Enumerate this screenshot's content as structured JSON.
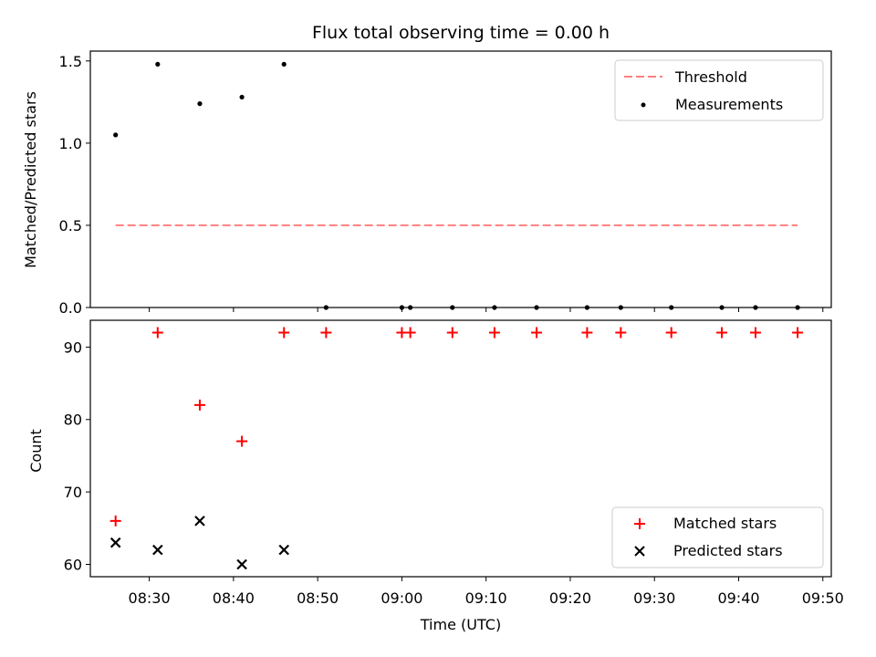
{
  "chart_data": [
    {
      "type": "scatter",
      "title": "Flux total observing time = 0.00 h",
      "xlabel": "",
      "ylabel": "Matched/Predicted stars",
      "ylim": [
        0,
        1.56
      ],
      "yticks": [
        0.0,
        0.5,
        1.0,
        1.5
      ],
      "ytick_labels": [
        "0.0",
        "0.5",
        "1.0",
        "1.5"
      ],
      "threshold": {
        "name": "Threshold",
        "y": 0.5,
        "x": [
          "08:26",
          "09:47"
        ],
        "color": "#ff7f7f"
      },
      "series": [
        {
          "name": "Measurements",
          "color": "#000000",
          "marker": "dot",
          "x": [
            "08:26",
            "08:31",
            "08:36",
            "08:41",
            "08:46",
            "08:51",
            "09:00",
            "09:01",
            "09:06",
            "09:11",
            "09:16",
            "09:22",
            "09:26",
            "09:32",
            "09:38",
            "09:42",
            "09:47"
          ],
          "y": [
            1.05,
            1.48,
            1.24,
            1.28,
            1.48,
            0,
            0,
            0,
            0,
            0,
            0,
            0,
            0,
            0,
            0,
            0,
            0
          ]
        }
      ],
      "legend": {
        "location": "top-right",
        "entries": [
          "Threshold",
          "Measurements"
        ]
      },
      "grid": false
    },
    {
      "type": "scatter",
      "title": "",
      "xlabel": "Time (UTC)",
      "ylabel": "Count",
      "xlim": [
        "08:23",
        "09:51"
      ],
      "xticks": [
        "08:30",
        "08:40",
        "08:50",
        "09:00",
        "09:10",
        "09:20",
        "09:30",
        "09:40",
        "09:50"
      ],
      "ylim": [
        58.3,
        93.7
      ],
      "yticks": [
        60,
        70,
        80,
        90
      ],
      "ytick_labels": [
        "60",
        "70",
        "80",
        "90"
      ],
      "series": [
        {
          "name": "Matched stars",
          "color": "#ff0000",
          "marker": "plus",
          "x": [
            "08:26",
            "08:31",
            "08:36",
            "08:41",
            "08:46",
            "08:51",
            "09:00",
            "09:01",
            "09:06",
            "09:11",
            "09:16",
            "09:22",
            "09:26",
            "09:32",
            "09:38",
            "09:42",
            "09:47"
          ],
          "y": [
            66,
            92,
            82,
            77,
            92,
            92,
            92,
            92,
            92,
            92,
            92,
            92,
            92,
            92,
            92,
            92,
            92
          ]
        },
        {
          "name": "Predicted stars",
          "color": "#000000",
          "marker": "x",
          "x": [
            "08:26",
            "08:31",
            "08:36",
            "08:41",
            "08:46"
          ],
          "y": [
            63,
            62,
            66,
            60,
            62
          ]
        }
      ],
      "legend": {
        "location": "bottom-right",
        "entries": [
          "Matched stars",
          "Predicted stars"
        ]
      },
      "grid": false
    }
  ]
}
